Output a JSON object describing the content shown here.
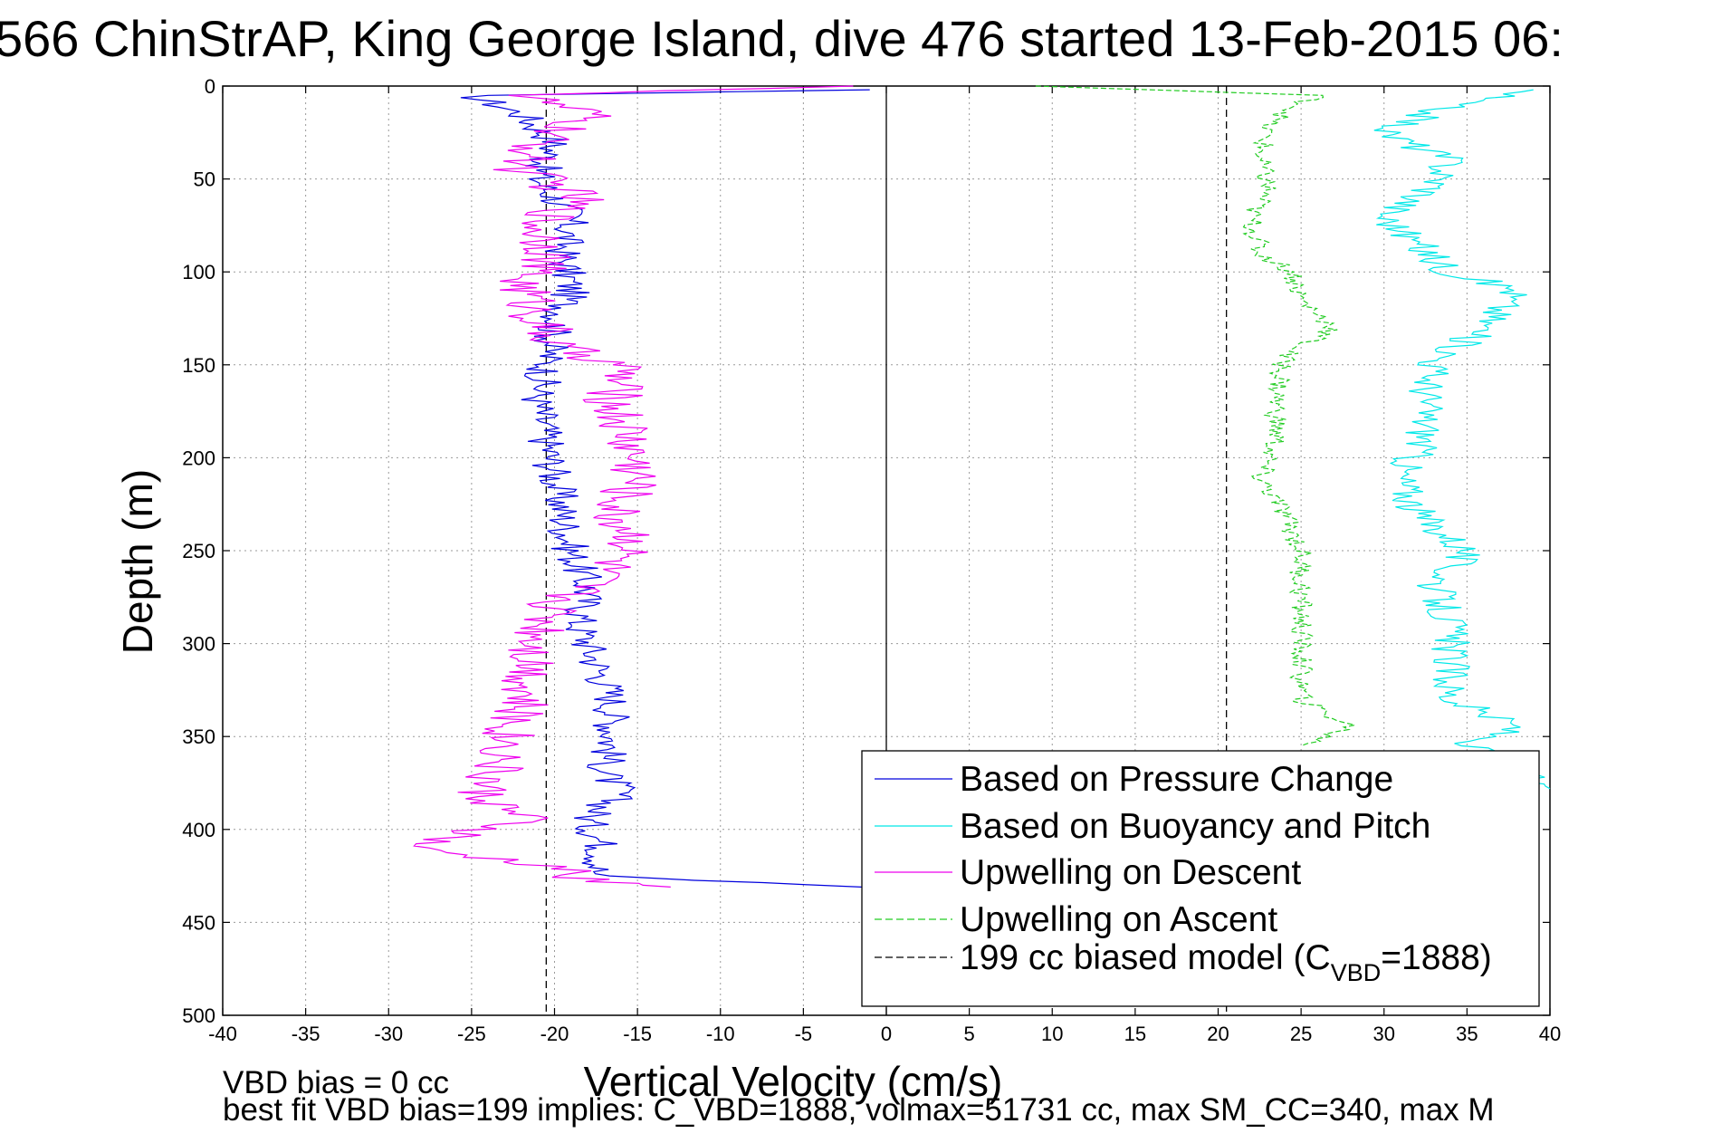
{
  "chart_data": {
    "type": "line",
    "title": "566 ChinStrAP, King George Island, dive 476 started 13-Feb-2015 06:",
    "xlabel": "Vertical Velocity (cm/s)",
    "ylabel": "Depth (m)",
    "xlim": [
      -40,
      40
    ],
    "ylim": [
      0,
      500
    ],
    "y_reversed": true,
    "grid": true,
    "x_ticks": [
      -40,
      -35,
      -30,
      -25,
      -20,
      -15,
      -10,
      -5,
      0,
      5,
      10,
      15,
      20,
      25,
      30,
      35,
      40
    ],
    "y_ticks": [
      0,
      50,
      100,
      150,
      200,
      250,
      300,
      350,
      400,
      450,
      500
    ],
    "zero_line_x": 0,
    "legend_position": "bottom-right",
    "series": [
      {
        "name": "Based on Pressure Change",
        "color": "#0000dd",
        "style": "solid",
        "points": [
          [
            -1,
            2
          ],
          [
            -25,
            5
          ],
          [
            -22,
            15
          ],
          [
            -20,
            30
          ],
          [
            -21,
            50
          ],
          [
            -19,
            70
          ],
          [
            -19.5,
            90
          ],
          [
            -19,
            110
          ],
          [
            -20,
            130
          ],
          [
            -20.5,
            150
          ],
          [
            -21,
            170
          ],
          [
            -20.5,
            190
          ],
          [
            -20,
            210
          ],
          [
            -19.5,
            230
          ],
          [
            -19,
            250
          ],
          [
            -18,
            270
          ],
          [
            -18.5,
            290
          ],
          [
            -17.5,
            310
          ],
          [
            -16.5,
            330
          ],
          [
            -16.5,
            350
          ],
          [
            -17,
            370
          ],
          [
            -16,
            380
          ],
          [
            -18,
            395
          ],
          [
            -17,
            410
          ],
          [
            -17.5,
            425
          ],
          [
            -1.5,
            431
          ]
        ]
      },
      {
        "name": "Upwelling on Descent",
        "color": "#ee00ee",
        "style": "solid",
        "points": [
          [
            -2,
            0
          ],
          [
            -22,
            5
          ],
          [
            -18,
            15
          ],
          [
            -21,
            30
          ],
          [
            -22,
            45
          ],
          [
            -18.5,
            60
          ],
          [
            -21,
            75
          ],
          [
            -20,
            90
          ],
          [
            -22,
            105
          ],
          [
            -21,
            125
          ],
          [
            -20,
            140
          ],
          [
            -16,
            150
          ],
          [
            -16.5,
            170
          ],
          [
            -15.5,
            190
          ],
          [
            -15,
            210
          ],
          [
            -16.5,
            230
          ],
          [
            -15,
            245
          ],
          [
            -17,
            260
          ],
          [
            -20,
            280
          ],
          [
            -21,
            300
          ],
          [
            -21.5,
            320
          ],
          [
            -22.5,
            340
          ],
          [
            -23,
            360
          ],
          [
            -24.5,
            380
          ],
          [
            -22,
            395
          ],
          [
            -29,
            410
          ],
          [
            -20,
            420
          ],
          [
            -18,
            428
          ],
          [
            -13,
            431
          ]
        ]
      },
      {
        "name": "Based on Buoyancy and Pitch",
        "color": "#00e8e8",
        "style": "solid",
        "points": [
          [
            39,
            2
          ],
          [
            34,
            10
          ],
          [
            30,
            25
          ],
          [
            34,
            40
          ],
          [
            33,
            55
          ],
          [
            30,
            70
          ],
          [
            32,
            85
          ],
          [
            34,
            100
          ],
          [
            38,
            110
          ],
          [
            36,
            130
          ],
          [
            33,
            150
          ],
          [
            32.5,
            170
          ],
          [
            32.5,
            190
          ],
          [
            31,
            210
          ],
          [
            32,
            230
          ],
          [
            35,
            250
          ],
          [
            33,
            270
          ],
          [
            34,
            290
          ],
          [
            34,
            310
          ],
          [
            34,
            330
          ],
          [
            38,
            345
          ],
          [
            35,
            355
          ],
          [
            40,
            378
          ]
        ]
      },
      {
        "name": "Upwelling on Ascent",
        "color": "#22cc22",
        "style": "dashed",
        "points": [
          [
            9,
            0
          ],
          [
            26,
            5
          ],
          [
            23,
            20
          ],
          [
            22.5,
            40
          ],
          [
            23,
            55
          ],
          [
            22,
            70
          ],
          [
            22.5,
            90
          ],
          [
            24.5,
            100
          ],
          [
            25,
            115
          ],
          [
            27,
            130
          ],
          [
            24,
            145
          ],
          [
            23.5,
            170
          ],
          [
            23.5,
            190
          ],
          [
            22.5,
            210
          ],
          [
            24,
            230
          ],
          [
            25,
            250
          ],
          [
            25,
            270
          ],
          [
            25,
            290
          ],
          [
            25,
            310
          ],
          [
            25,
            330
          ],
          [
            28,
            345
          ],
          [
            25,
            355
          ]
        ]
      },
      {
        "name": "199 cc biased model (C_VBD=1888)",
        "color": "#000000",
        "style": "dashed",
        "segments": [
          {
            "x": -20.5,
            "y": [
              0,
              500
            ]
          },
          {
            "x": 20.5,
            "y": [
              0,
              500
            ]
          }
        ]
      }
    ],
    "legend": [
      {
        "label": "Based on Pressure Change",
        "color": "#0000dd",
        "style": "solid"
      },
      {
        "label": "Based on Buoyancy and Pitch",
        "color": "#00e8e8",
        "style": "solid"
      },
      {
        "label": "Upwelling on Descent",
        "color": "#ee00ee",
        "style": "solid"
      },
      {
        "label": "Upwelling on Ascent",
        "color": "#22cc22",
        "style": "dashed"
      },
      {
        "label_prefix": "199 cc biased model (C",
        "label_sub": "VBD",
        "label_suffix": "=1888)",
        "color": "#000000",
        "style": "dashed"
      }
    ],
    "annotations": [
      "VBD bias = 0 cc",
      "best fit VBD bias=199 implies: C_VBD=1888, volmax=51731 cc, max SM_CC=340, max M"
    ]
  }
}
